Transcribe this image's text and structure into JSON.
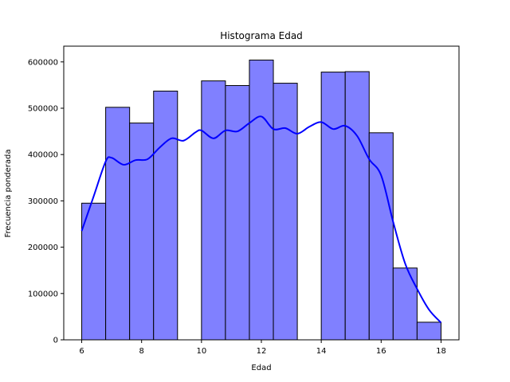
{
  "chart_data": {
    "type": "bar",
    "title": "Histograma Edad",
    "xlabel": "Edad",
    "ylabel": "Frecuencia ponderada",
    "xlim": [
      5.4,
      18.6
    ],
    "ylim": [
      0,
      634000
    ],
    "xticks": [
      6,
      8,
      10,
      12,
      14,
      16,
      18
    ],
    "yticks": [
      0,
      100000,
      200000,
      300000,
      400000,
      500000,
      600000
    ],
    "bar_color": "#8080ff",
    "edge_color": "#000000",
    "kde_color": "#0000ff",
    "bins": [
      {
        "x0": 6.0,
        "x1": 6.8,
        "value": 295000
      },
      {
        "x0": 6.8,
        "x1": 7.6,
        "value": 502000
      },
      {
        "x0": 7.6,
        "x1": 8.4,
        "value": 468000
      },
      {
        "x0": 8.4,
        "x1": 9.2,
        "value": 537000
      },
      {
        "x0": 9.2,
        "x1": 10.0,
        "value": 0
      },
      {
        "x0": 10.0,
        "x1": 10.8,
        "value": 559000
      },
      {
        "x0": 10.8,
        "x1": 11.6,
        "value": 549000
      },
      {
        "x0": 11.6,
        "x1": 12.4,
        "value": 604000
      },
      {
        "x0": 12.4,
        "x1": 13.2,
        "value": 554000
      },
      {
        "x0": 13.2,
        "x1": 14.0,
        "value": 0
      },
      {
        "x0": 14.0,
        "x1": 14.8,
        "value": 578000
      },
      {
        "x0": 14.8,
        "x1": 15.6,
        "value": 579000
      },
      {
        "x0": 15.6,
        "x1": 16.4,
        "value": 447000
      },
      {
        "x0": 16.4,
        "x1": 17.2,
        "value": 155000
      },
      {
        "x0": 17.2,
        "x1": 18.0,
        "value": 38000
      }
    ],
    "kde": {
      "x": [
        6.0,
        6.4,
        6.8,
        7.0,
        7.4,
        7.8,
        8.2,
        8.6,
        9.0,
        9.4,
        9.8,
        10.0,
        10.4,
        10.8,
        11.2,
        11.6,
        12.0,
        12.4,
        12.8,
        13.2,
        13.6,
        14.0,
        14.4,
        14.8,
        15.2,
        15.6,
        16.0,
        16.4,
        16.8,
        17.2,
        17.6,
        18.0
      ],
      "y": [
        235000,
        310000,
        385000,
        393000,
        378000,
        388000,
        390000,
        415000,
        435000,
        430000,
        448000,
        452000,
        435000,
        452000,
        450000,
        468000,
        482000,
        455000,
        457000,
        445000,
        460000,
        470000,
        455000,
        462000,
        440000,
        390000,
        355000,
        255000,
        165000,
        110000,
        65000,
        37000
      ]
    }
  }
}
